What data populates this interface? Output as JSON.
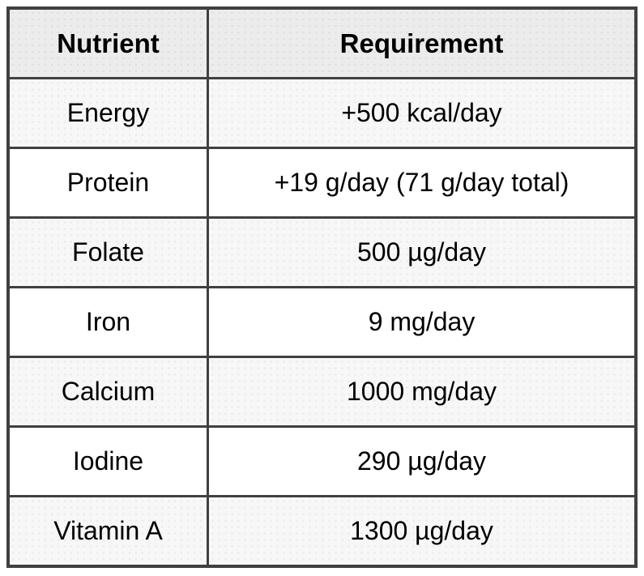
{
  "chart_data": {
    "type": "table",
    "columns": [
      "Nutrient",
      "Requirement"
    ],
    "rows": [
      [
        "Energy",
        "+500 kcal/day"
      ],
      [
        "Protein",
        "+19 g/day (71 g/day total)"
      ],
      [
        "Folate",
        "500 µg/day"
      ],
      [
        "Iron",
        "9 mg/day"
      ],
      [
        "Calcium",
        "1000 mg/day"
      ],
      [
        "Iodine",
        "290 µg/day"
      ],
      [
        "Vitamin A",
        "1300 µg/day"
      ]
    ]
  },
  "colors": {
    "border": "#404040",
    "header_bg": "#ececec",
    "stripe_row_bg": "#f7f7f7",
    "plain_row_bg": "#ffffff",
    "text": "#000000"
  }
}
